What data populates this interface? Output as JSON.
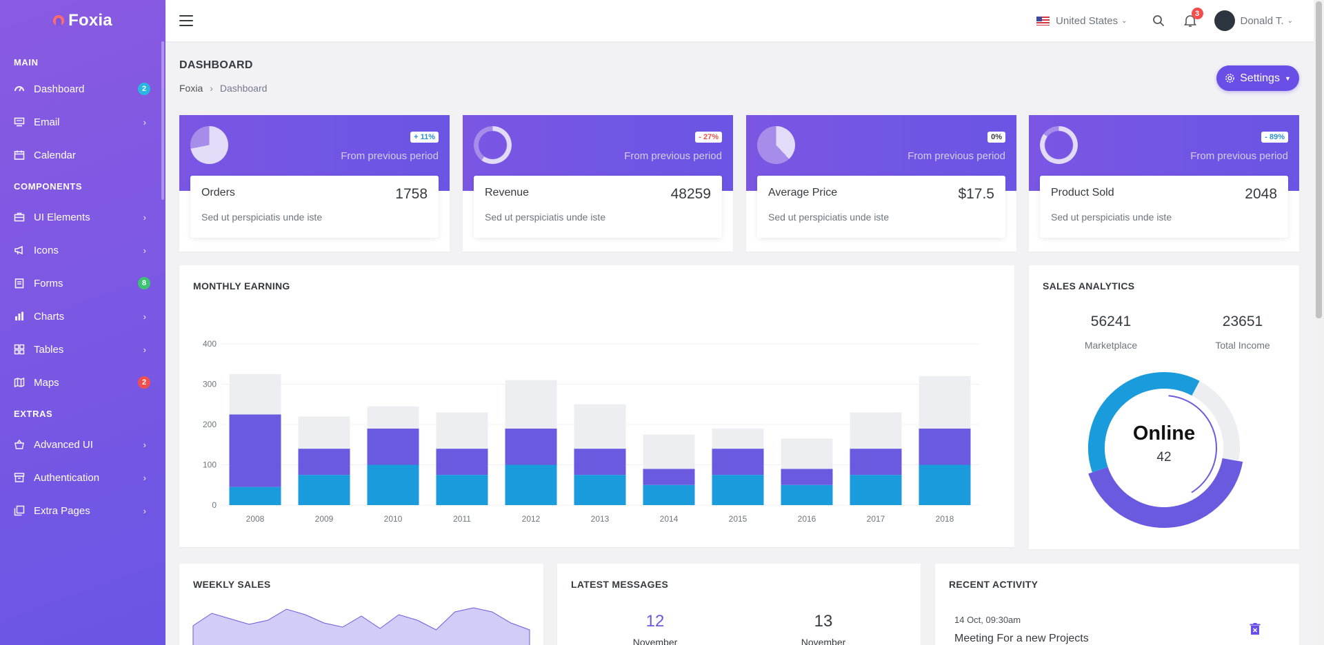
{
  "app": {
    "name": "Foxia"
  },
  "sidebar": {
    "sections": {
      "main": "MAIN",
      "components": "COMPONENTS",
      "extras": "EXTRAS"
    },
    "items": [
      {
        "label": "Dashboard",
        "icon": "speedometer-icon",
        "badge": "2",
        "badge_color": "#29b6e0"
      },
      {
        "label": "Email",
        "icon": "inbox-icon"
      },
      {
        "label": "Calendar",
        "icon": "calendar-icon"
      },
      {
        "label": "UI Elements",
        "icon": "briefcase-icon"
      },
      {
        "label": "Icons",
        "icon": "megaphone-icon"
      },
      {
        "label": "Forms",
        "icon": "clipboard-icon",
        "badge": "8",
        "badge_color": "#3cc273"
      },
      {
        "label": "Charts",
        "icon": "bar-chart-icon"
      },
      {
        "label": "Tables",
        "icon": "table-icon"
      },
      {
        "label": "Maps",
        "icon": "map-icon",
        "badge": "2",
        "badge_color": "#f24e4e"
      },
      {
        "label": "Advanced UI",
        "icon": "basket-icon"
      },
      {
        "label": "Authentication",
        "icon": "archive-icon"
      },
      {
        "label": "Extra Pages",
        "icon": "copy-icon"
      }
    ]
  },
  "topbar": {
    "country": "United States",
    "notification_count": "3",
    "user_name": "Donald T."
  },
  "page": {
    "title": "DASHBOARD",
    "breadcrumb": [
      "Foxia",
      "Dashboard"
    ],
    "settings_label": "Settings"
  },
  "stats": [
    {
      "name": "Orders",
      "value": "1758",
      "change": "+ 11%",
      "change_color": "#2a8fd6",
      "period": "From previous period",
      "desc": "Sed ut perspiciatis unde iste",
      "donut_fraction": 0.72,
      "donut_type": "pie"
    },
    {
      "name": "Revenue",
      "value": "48259",
      "change": "- 27%",
      "change_color": "#f24e4e",
      "period": "From previous period",
      "desc": "Sed ut perspiciatis unde iste",
      "donut_fraction": 0.6,
      "donut_type": "ring"
    },
    {
      "name": "Average Price",
      "value": "$17.5",
      "change": "0%",
      "change_color": "#343a40",
      "period": "From previous period",
      "desc": "Sed ut perspiciatis unde iste",
      "donut_fraction": 0.38,
      "donut_type": "pie"
    },
    {
      "name": "Product Sold",
      "value": "2048",
      "change": "- 89%",
      "change_color": "#2a8fd6",
      "period": "From previous period",
      "desc": "Sed ut perspiciatis unde iste",
      "donut_fraction": 0.85,
      "donut_type": "ring"
    }
  ],
  "monthly_earning": {
    "title": "MONTHLY EARNING",
    "chart_data": {
      "type": "bar",
      "stacked": true,
      "categories": [
        "2008",
        "2009",
        "2010",
        "2011",
        "2012",
        "2013",
        "2014",
        "2015",
        "2016",
        "2017",
        "2018"
      ],
      "series": [
        {
          "values": [
            45,
            75,
            100,
            75,
            100,
            75,
            50,
            75,
            50,
            75,
            100
          ],
          "color": "#1a9bdb"
        },
        {
          "values": [
            180,
            65,
            90,
            65,
            90,
            65,
            40,
            65,
            40,
            65,
            90
          ],
          "color": "#6a5ae0"
        },
        {
          "values": [
            100,
            80,
            55,
            90,
            120,
            110,
            85,
            50,
            75,
            90,
            130
          ],
          "color": "#eceef1"
        }
      ],
      "y_ticks": [
        "0",
        "100",
        "200",
        "300",
        "400"
      ],
      "ylim": [
        0,
        400
      ],
      "grid": true
    }
  },
  "sales_analytics": {
    "title": "SALES ANALYTICS",
    "marketplace_value": "56241",
    "marketplace_label": "Marketplace",
    "income_value": "23651",
    "income_label": "Total Income",
    "center_label": "Online",
    "center_value": "42",
    "chart_data": {
      "type": "pie",
      "variant": "donut",
      "values": [
        42,
        38,
        20
      ],
      "colors": [
        "#6a5ae0",
        "#1a9bdb",
        "#eceef1"
      ]
    }
  },
  "weekly_sales": {
    "title": "WEEKLY SALES",
    "chart_data": {
      "type": "area",
      "values": [
        20,
        38,
        30,
        22,
        28,
        44,
        36,
        24,
        18,
        34,
        16,
        36,
        28,
        14,
        40,
        46,
        40,
        24,
        14
      ],
      "color": "#6a5ae0"
    }
  },
  "latest_messages": {
    "title": "LATEST MESSAGES",
    "items": [
      {
        "day": "12",
        "month": "November",
        "color": "#6a5ae0"
      },
      {
        "day": "13",
        "month": "November",
        "color": "#343a40"
      }
    ]
  },
  "recent_activity": {
    "title": "RECENT ACTIVITY",
    "time": "14 Oct, 09:30am",
    "text": "Meeting For a new Projects"
  }
}
